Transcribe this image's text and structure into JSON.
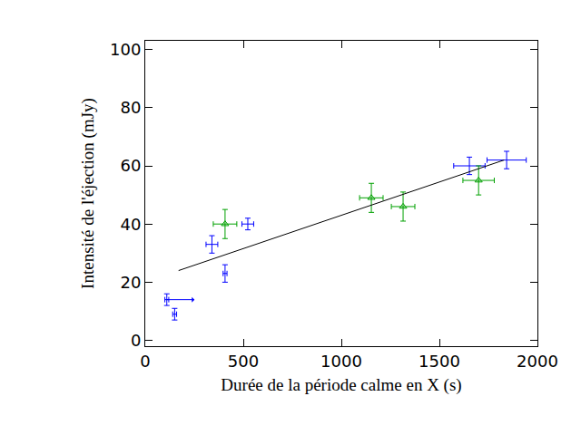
{
  "chart_data": {
    "type": "scatter",
    "x_label": "Durée de la période calme en X (s)",
    "y_label": "Intensité de l'éjection (mJy)",
    "xlim": [
      0,
      2000
    ],
    "xticks": [
      0,
      500,
      1000,
      1500,
      2000
    ],
    "ylim": [
      -2,
      103
    ],
    "yticks": [
      0,
      20,
      40,
      60,
      80,
      100
    ],
    "grid": false,
    "series": [
      {
        "type": "scatter",
        "color": "#0000ff",
        "marker": "none",
        "x": [
          110,
          150,
          340,
          407,
          523,
          1653,
          1843
        ],
        "values": [
          14,
          9,
          33,
          23,
          40,
          60,
          62
        ],
        "x_errors": [
          10,
          10,
          30,
          10,
          30,
          80,
          100
        ],
        "y_errors": [
          2,
          2,
          3,
          3,
          2,
          3,
          3
        ],
        "x_lower_limits": [
          true,
          false,
          false,
          false,
          false,
          false,
          false
        ]
      },
      {
        "type": "scatter",
        "color": "#00a000",
        "marker": "triangle-up-open",
        "x": [
          407,
          1153,
          1315,
          1700
        ],
        "values": [
          40,
          49,
          46,
          55
        ],
        "x_errors": [
          60,
          60,
          60,
          80
        ],
        "y_errors": [
          5,
          5,
          5,
          5
        ]
      },
      {
        "type": "line",
        "color": "#000000",
        "line_style": "solid",
        "x": [
          170,
          1830
        ],
        "values": [
          24,
          62
        ]
      }
    ]
  }
}
